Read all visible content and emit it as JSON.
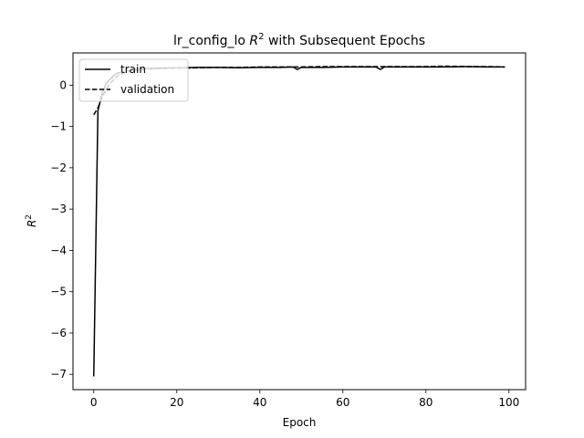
{
  "chart_data": {
    "type": "line",
    "title": "lr_config_lo R² with Subsequent Epochs",
    "title_prefix": "lr_config_lo ",
    "title_symbol": "R",
    "title_superscript": "2",
    "title_suffix": " with Subsequent Epochs",
    "xlabel": "Epoch",
    "ylabel": "R²",
    "ylabel_symbol": "R",
    "ylabel_superscript": "2",
    "xlim": [
      -5,
      104
    ],
    "ylim": [
      -7.37,
      0.78
    ],
    "xticks": [
      0,
      20,
      40,
      60,
      80,
      100
    ],
    "yticks": [
      -7,
      -6,
      -5,
      -4,
      -3,
      -2,
      -1,
      0
    ],
    "xtick_labels": [
      "0",
      "20",
      "40",
      "60",
      "80",
      "100"
    ],
    "ytick_labels": [
      "−7",
      "−6",
      "−5",
      "−4",
      "−3",
      "−2",
      "−1",
      "0"
    ],
    "grid": false,
    "legend": {
      "position": "upper-left"
    },
    "series": [
      {
        "name": "train",
        "color": "#000000",
        "dash": "solid",
        "x": [
          0,
          1,
          2,
          3,
          4,
          5,
          6,
          7,
          8,
          10,
          12,
          15,
          20,
          25,
          30,
          35,
          40,
          45,
          48,
          49,
          50,
          55,
          60,
          65,
          68,
          69,
          70,
          75,
          80,
          85,
          90,
          95,
          99
        ],
        "y": [
          -7.05,
          -0.62,
          -0.2,
          0.05,
          0.15,
          0.25,
          0.3,
          0.32,
          0.35,
          0.38,
          0.4,
          0.41,
          0.42,
          0.43,
          0.43,
          0.42,
          0.43,
          0.43,
          0.44,
          0.38,
          0.43,
          0.43,
          0.44,
          0.44,
          0.44,
          0.38,
          0.44,
          0.44,
          0.44,
          0.44,
          0.45,
          0.44,
          0.44
        ]
      },
      {
        "name": "validation",
        "color": "#000000",
        "dash": "dashed",
        "x": [
          0,
          1,
          2,
          3,
          4,
          5,
          6,
          8,
          10,
          12,
          15,
          20,
          25,
          30,
          35,
          40,
          45,
          50,
          55,
          60,
          65,
          70,
          75,
          80,
          85,
          90,
          95,
          99
        ],
        "y": [
          -0.72,
          -0.55,
          -0.3,
          -0.1,
          0.05,
          0.15,
          0.25,
          0.32,
          0.36,
          0.38,
          0.4,
          0.41,
          0.42,
          0.43,
          0.43,
          0.44,
          0.44,
          0.44,
          0.45,
          0.45,
          0.45,
          0.45,
          0.45,
          0.45,
          0.46,
          0.45,
          0.45,
          0.44
        ]
      },
      {
        "color": "#cccccc",
        "dash": "dashed",
        "x": [
          3,
          4,
          5,
          6,
          7,
          8,
          10,
          12,
          15,
          18,
          20,
          22
        ],
        "y": [
          0.0,
          0.1,
          0.2,
          0.27,
          0.3,
          0.33,
          0.35,
          0.37,
          0.38,
          0.39,
          0.4,
          0.4
        ]
      }
    ]
  }
}
